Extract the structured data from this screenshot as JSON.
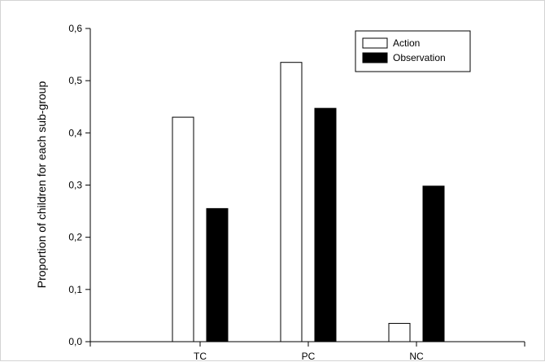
{
  "chart_data": {
    "type": "bar",
    "categories": [
      "TC",
      "PC",
      "NC"
    ],
    "series": [
      {
        "name": "Action",
        "values": [
          0.43,
          0.535,
          0.035
        ],
        "fill": "#ffffff",
        "stroke": "#000000"
      },
      {
        "name": "Observation",
        "values": [
          0.255,
          0.447,
          0.298
        ],
        "fill": "#000000",
        "stroke": "#000000"
      }
    ],
    "yticks": [
      "0,0",
      "0,1",
      "0,2",
      "0,3",
      "0,4",
      "0,5",
      "0,6"
    ],
    "ylabel": "Proportion of children for each sub-group",
    "xlabel": "",
    "ylim": [
      0,
      0.6
    ],
    "legend_position": "top-right",
    "grid": false
  }
}
